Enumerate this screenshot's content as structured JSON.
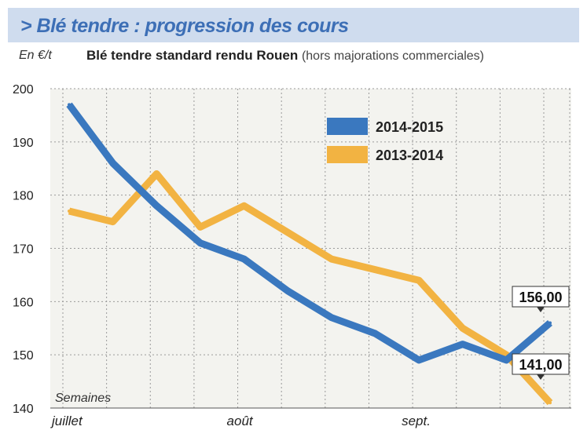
{
  "header": {
    "title": "> Blé tendre : progression des cours"
  },
  "unit_label": "En €/t",
  "subtitle": {
    "main": "Blé tendre standard rendu Rouen",
    "note": "(hors majorations commerciales)"
  },
  "chart_data": {
    "type": "line",
    "title": "Blé tendre standard rendu Rouen",
    "subtitle": "(hors majorations commerciales)",
    "ylabel": "En €/t",
    "xlabel": "Semaines",
    "ylim": [
      140,
      200
    ],
    "yticks": [
      140,
      150,
      160,
      170,
      180,
      190,
      200
    ],
    "xtick_labels": [
      {
        "label": "juillet",
        "index": 0
      },
      {
        "label": "août",
        "index": 4
      },
      {
        "label": "sept.",
        "index": 8
      }
    ],
    "x": [
      0,
      1,
      2,
      3,
      4,
      5,
      6,
      7,
      8,
      9,
      10,
      11
    ],
    "series": [
      {
        "name": "2014-2015",
        "color": "#3a78bf",
        "values": [
          197,
          186,
          178,
          171,
          168,
          162,
          157,
          154,
          149,
          152,
          149,
          156
        ]
      },
      {
        "name": "2013-2014",
        "color": "#f2b342",
        "values": [
          177,
          175,
          184,
          174,
          178,
          173,
          168,
          166,
          164,
          155,
          150,
          141
        ]
      }
    ],
    "annotations": [
      {
        "text": "156,00",
        "series": "2014-2015",
        "index": 11
      },
      {
        "text": "141,00",
        "series": "2013-2014",
        "index": 11
      }
    ],
    "grid": true,
    "legend": "top-right"
  }
}
